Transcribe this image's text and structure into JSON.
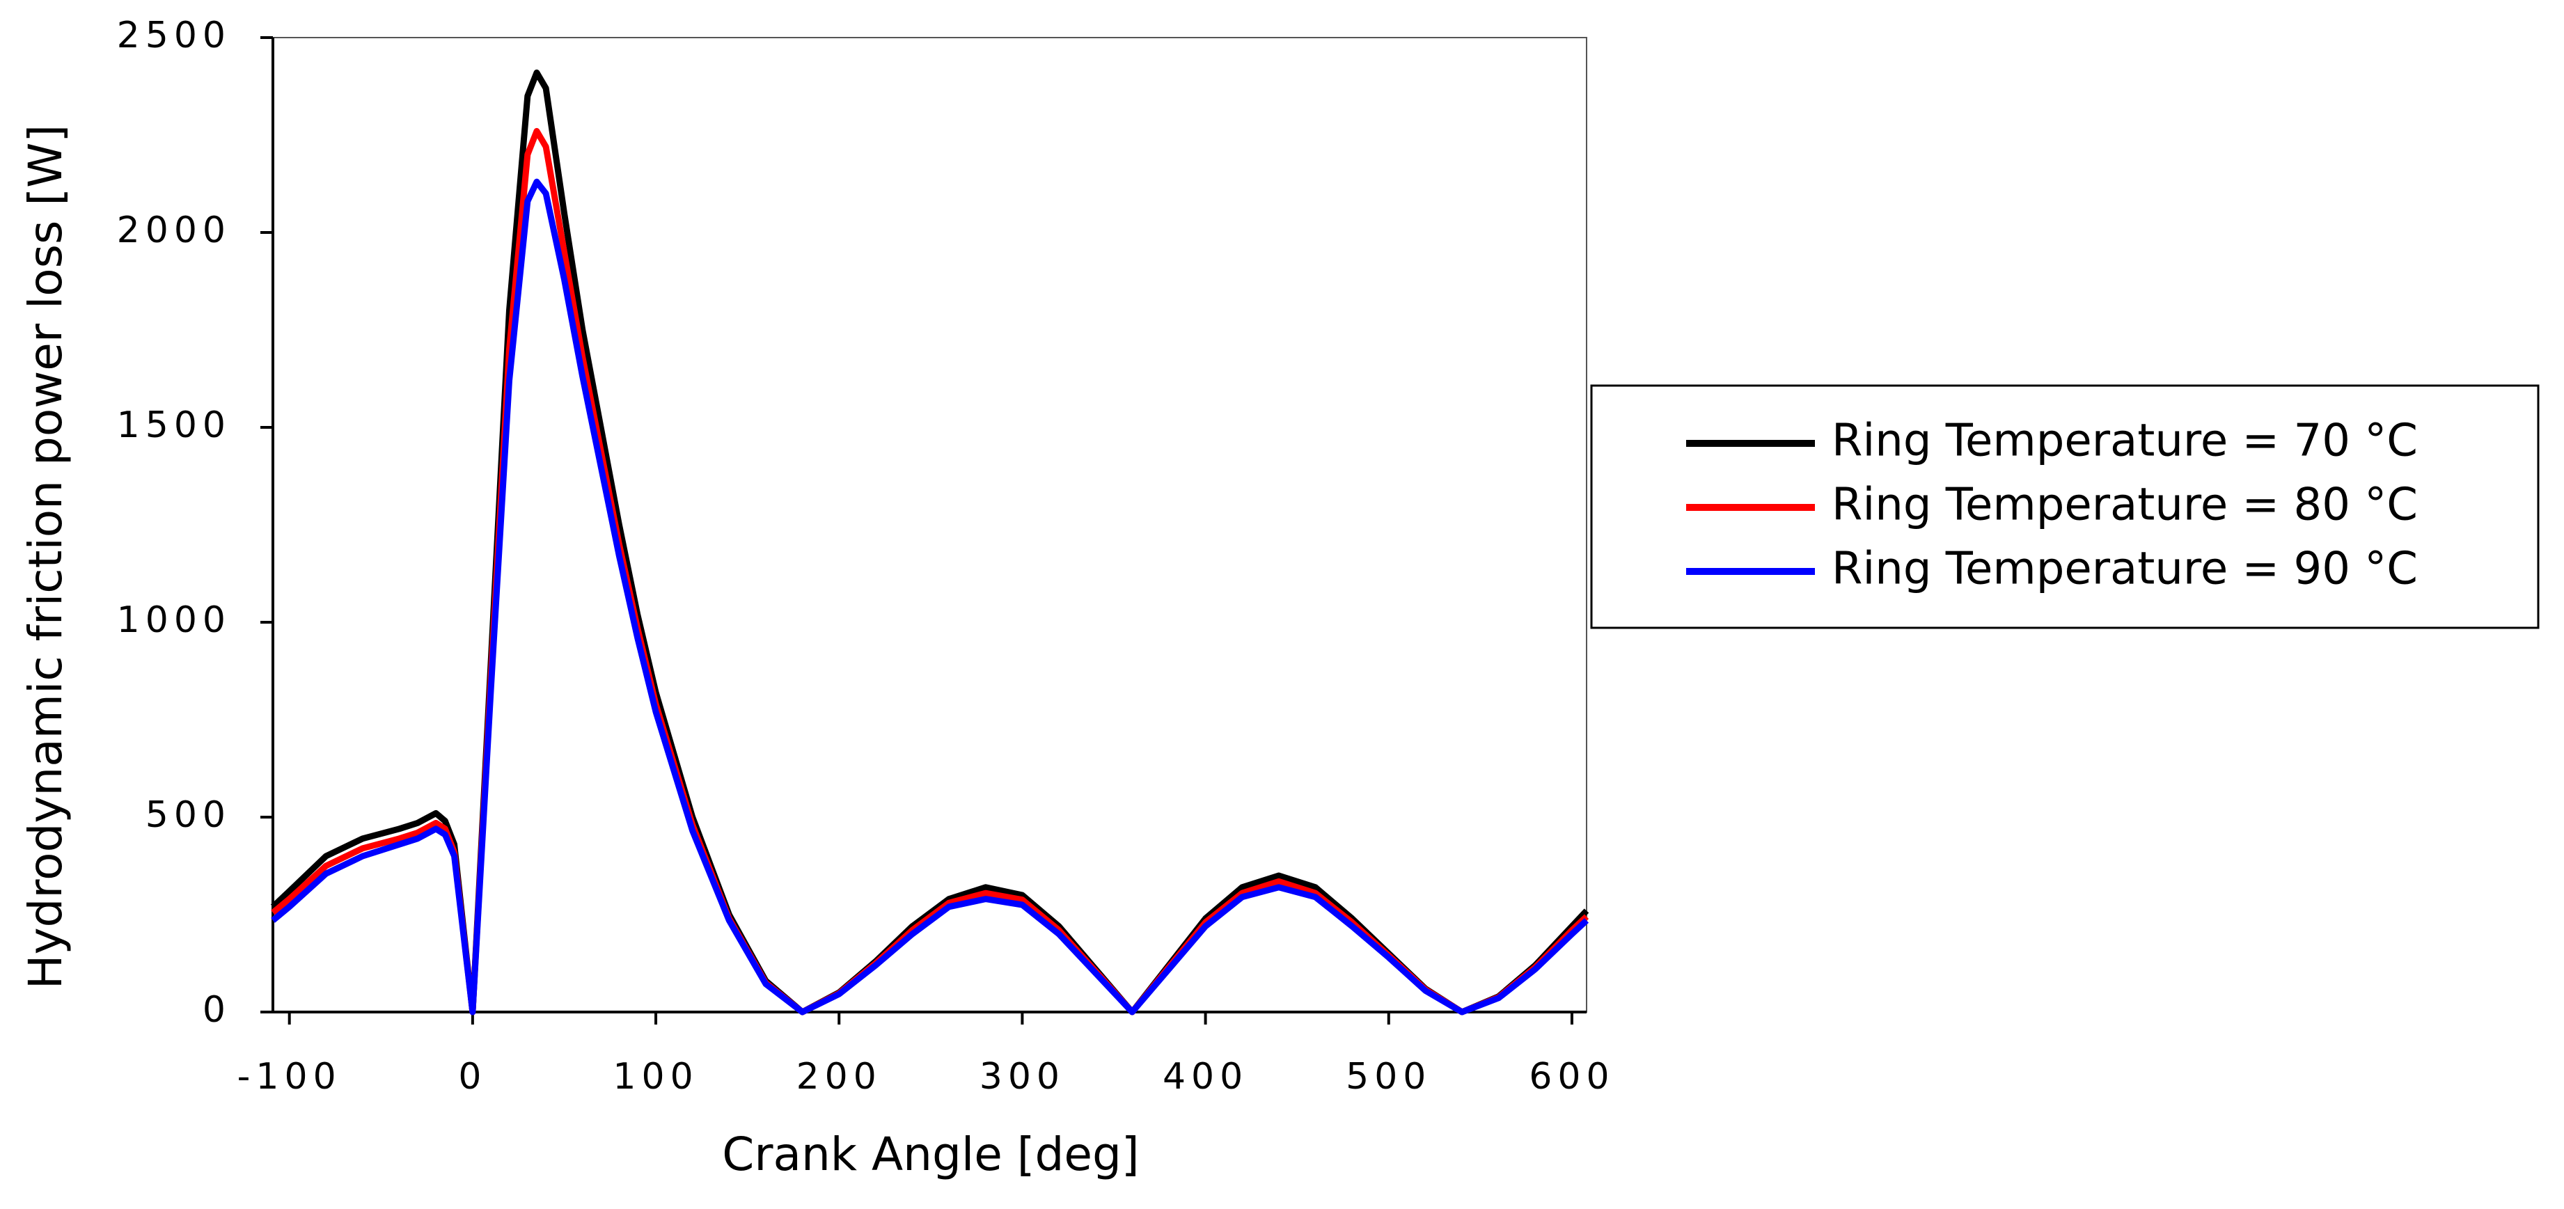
{
  "chart_data": {
    "type": "line",
    "x_label": "Crank Angle [deg]",
    "y_label": "Hydrodynamic friction power loss [W]",
    "x": [
      -109,
      -100,
      -80,
      -60,
      -40,
      -30,
      -20,
      -15,
      -10,
      0,
      10,
      20,
      30,
      35,
      40,
      50,
      60,
      70,
      80,
      90,
      100,
      120,
      140,
      160,
      180,
      200,
      220,
      240,
      260,
      280,
      300,
      320,
      340,
      360,
      380,
      400,
      420,
      440,
      460,
      480,
      500,
      520,
      540,
      560,
      580,
      600,
      608
    ],
    "series": [
      {
        "name": "Ring Temperature = 70 °C",
        "color": "#000000",
        "values": [
          270,
          310,
          400,
          445,
          470,
          485,
          510,
          490,
          430,
          0,
          900,
          1800,
          2350,
          2410,
          2370,
          2050,
          1750,
          1500,
          1250,
          1020,
          820,
          500,
          250,
          80,
          0,
          50,
          130,
          220,
          290,
          320,
          300,
          220,
          110,
          0,
          120,
          240,
          320,
          350,
          320,
          240,
          150,
          60,
          0,
          40,
          120,
          220,
          260
        ]
      },
      {
        "name": "Ring Temperature = 80 °C",
        "color": "#ff0000",
        "values": [
          255,
          290,
          375,
          420,
          445,
          460,
          485,
          470,
          410,
          0,
          860,
          1700,
          2200,
          2260,
          2220,
          1950,
          1680,
          1440,
          1200,
          985,
          790,
          480,
          240,
          75,
          0,
          48,
          125,
          210,
          280,
          305,
          288,
          210,
          105,
          0,
          115,
          230,
          305,
          335,
          305,
          230,
          145,
          58,
          0,
          38,
          115,
          210,
          245
        ]
      },
      {
        "name": "Ring Temperature = 90 °C",
        "color": "#0000ff",
        "values": [
          235,
          270,
          355,
          400,
          430,
          445,
          470,
          455,
          400,
          0,
          830,
          1620,
          2080,
          2130,
          2100,
          1880,
          1630,
          1400,
          1170,
          960,
          770,
          465,
          235,
          72,
          0,
          46,
          120,
          200,
          270,
          290,
          275,
          200,
          100,
          0,
          110,
          220,
          295,
          320,
          295,
          220,
          140,
          55,
          0,
          36,
          110,
          200,
          235
        ]
      }
    ],
    "xlim": [
      -109,
      608
    ],
    "ylim": [
      0,
      2500
    ],
    "xticks": [
      -100,
      0,
      100,
      200,
      300,
      400,
      500,
      600
    ],
    "yticks": [
      0,
      500,
      1000,
      1500,
      2000,
      2500
    ],
    "legend": "right"
  }
}
